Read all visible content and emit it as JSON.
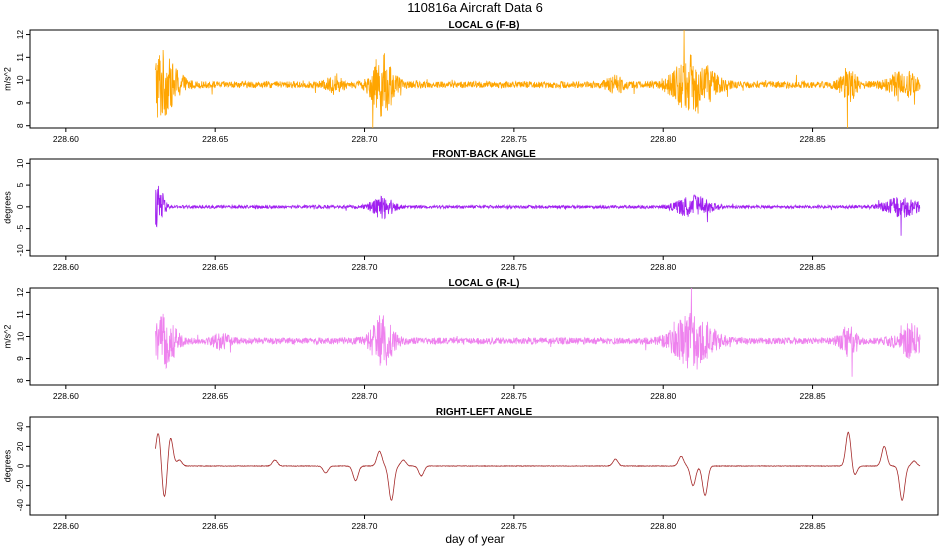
{
  "header": {
    "title": "110816a    Aircraft Data 6"
  },
  "xlabel": "day of year",
  "chart_data": [
    {
      "type": "line",
      "title": "LOCAL G (F-B)",
      "ylabel": "m/s^2",
      "color": "#FFA500",
      "xlim": [
        228.588,
        228.892
      ],
      "ylim": [
        7.9,
        12.2
      ],
      "x_ticks": [
        228.6,
        228.65,
        228.7,
        228.75,
        228.8,
        228.85
      ],
      "x_tick_labels": [
        "228.60",
        "228.65",
        "228.70",
        "228.75",
        "228.80",
        "228.85"
      ],
      "y_ticks": [
        8,
        9,
        10,
        11,
        12
      ],
      "y_tick_labels": [
        "8",
        "9",
        "10",
        "11",
        "12"
      ],
      "x_range": [
        228.63,
        228.886
      ],
      "baseline": 9.8,
      "noise": 0.15,
      "bursts": [
        {
          "x": 228.631,
          "w": 0.0035,
          "amp": 1.4
        },
        {
          "x": 228.636,
          "w": 0.004,
          "amp": 0.6
        },
        {
          "x": 228.69,
          "w": 0.003,
          "amp": 0.3
        },
        {
          "x": 228.706,
          "w": 0.004,
          "amp": 1.3
        },
        {
          "x": 228.784,
          "w": 0.003,
          "amp": 0.3
        },
        {
          "x": 228.81,
          "w": 0.007,
          "amp": 1.2
        },
        {
          "x": 228.862,
          "w": 0.003,
          "amp": 0.7
        },
        {
          "x": 228.88,
          "w": 0.005,
          "amp": 0.6
        }
      ]
    },
    {
      "type": "line",
      "title": "FRONT-BACK ANGLE",
      "ylabel": "degrees",
      "color": "#A020F0",
      "xlim": [
        228.588,
        228.892
      ],
      "ylim": [
        -11.3,
        11.0
      ],
      "x_ticks": [
        228.6,
        228.65,
        228.7,
        228.75,
        228.8,
        228.85
      ],
      "x_tick_labels": [
        "228.60",
        "228.65",
        "228.70",
        "228.75",
        "228.80",
        "228.85"
      ],
      "y_ticks": [
        -10,
        -5,
        0,
        5,
        10
      ],
      "y_tick_labels": [
        "-10",
        "-5",
        "0",
        "5",
        "10"
      ],
      "x_range": [
        228.63,
        228.886
      ],
      "baseline": 0,
      "noise": 0.35,
      "bursts": [
        {
          "x": 228.631,
          "w": 0.002,
          "amp": 5.0
        },
        {
          "x": 228.706,
          "w": 0.004,
          "amp": 2.5
        },
        {
          "x": 228.81,
          "w": 0.006,
          "amp": 2.5
        },
        {
          "x": 228.88,
          "w": 0.006,
          "amp": 2.2
        }
      ]
    },
    {
      "type": "line",
      "title": "LOCAL G (R-L)",
      "ylabel": "m/s^2",
      "color": "#EE82EE",
      "xlim": [
        228.588,
        228.892
      ],
      "ylim": [
        7.8,
        12.2
      ],
      "x_ticks": [
        228.6,
        228.65,
        228.7,
        228.75,
        228.8,
        228.85
      ],
      "x_tick_labels": [
        "228.60",
        "228.65",
        "228.70",
        "228.75",
        "228.80",
        "228.85"
      ],
      "y_ticks": [
        8,
        9,
        10,
        11,
        12
      ],
      "y_tick_labels": [
        "8",
        "9",
        "10",
        "11",
        "12"
      ],
      "x_range": [
        228.63,
        228.886
      ],
      "baseline": 9.8,
      "noise": 0.15,
      "bursts": [
        {
          "x": 228.633,
          "w": 0.004,
          "amp": 1.1
        },
        {
          "x": 228.652,
          "w": 0.003,
          "amp": 0.3
        },
        {
          "x": 228.706,
          "w": 0.004,
          "amp": 1.1
        },
        {
          "x": 228.81,
          "w": 0.007,
          "amp": 1.2
        },
        {
          "x": 228.862,
          "w": 0.003,
          "amp": 0.6
        },
        {
          "x": 228.882,
          "w": 0.005,
          "amp": 0.7
        }
      ]
    },
    {
      "type": "line",
      "title": "RIGHT-LEFT ANGLE",
      "ylabel": "degrees",
      "color": "#A52A2A",
      "xlim": [
        228.588,
        228.892
      ],
      "ylim": [
        -50,
        50
      ],
      "x_ticks": [
        228.6,
        228.65,
        228.7,
        228.75,
        228.8,
        228.85
      ],
      "x_tick_labels": [
        "228.60",
        "228.65",
        "228.70",
        "228.75",
        "228.80",
        "228.85"
      ],
      "y_ticks": [
        -40,
        -20,
        0,
        20,
        40
      ],
      "y_tick_labels": [
        "-40",
        "-20",
        "0",
        "20",
        "40"
      ],
      "x_range": [
        228.63,
        228.886
      ],
      "baseline": 0,
      "noise": 0.3,
      "events": [
        {
          "x": 228.631,
          "v": 35
        },
        {
          "x": 228.633,
          "v": -35
        },
        {
          "x": 228.635,
          "v": 30
        },
        {
          "x": 228.638,
          "v": 6
        },
        {
          "x": 228.67,
          "v": 6
        },
        {
          "x": 228.687,
          "v": -7
        },
        {
          "x": 228.697,
          "v": -15
        },
        {
          "x": 228.705,
          "v": 15
        },
        {
          "x": 228.709,
          "v": -35
        },
        {
          "x": 228.713,
          "v": 6
        },
        {
          "x": 228.719,
          "v": -10
        },
        {
          "x": 228.784,
          "v": 7
        },
        {
          "x": 228.806,
          "v": 10
        },
        {
          "x": 228.81,
          "v": -20
        },
        {
          "x": 228.814,
          "v": -30
        },
        {
          "x": 228.862,
          "v": 35
        },
        {
          "x": 228.864,
          "v": -10
        },
        {
          "x": 228.874,
          "v": 20
        },
        {
          "x": 228.88,
          "v": -35
        },
        {
          "x": 228.884,
          "v": 5
        }
      ]
    }
  ]
}
